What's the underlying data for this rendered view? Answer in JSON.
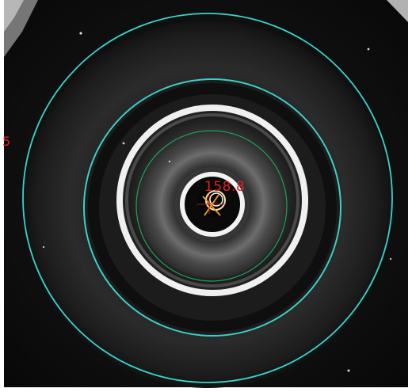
{
  "overlay": {
    "measurement_label": "158.8",
    "edge_label": "5"
  },
  "colors": {
    "background": "#0b0b0b",
    "outer_circle": "#38d3cf",
    "inner_circle": "#1fa05a",
    "label": "#e02020",
    "cross": "#f0a020",
    "center_ring": "#f3f3f3"
  },
  "circles": {
    "outer_fit": "cyan",
    "inner_fit": "green",
    "center_fit": "white"
  }
}
